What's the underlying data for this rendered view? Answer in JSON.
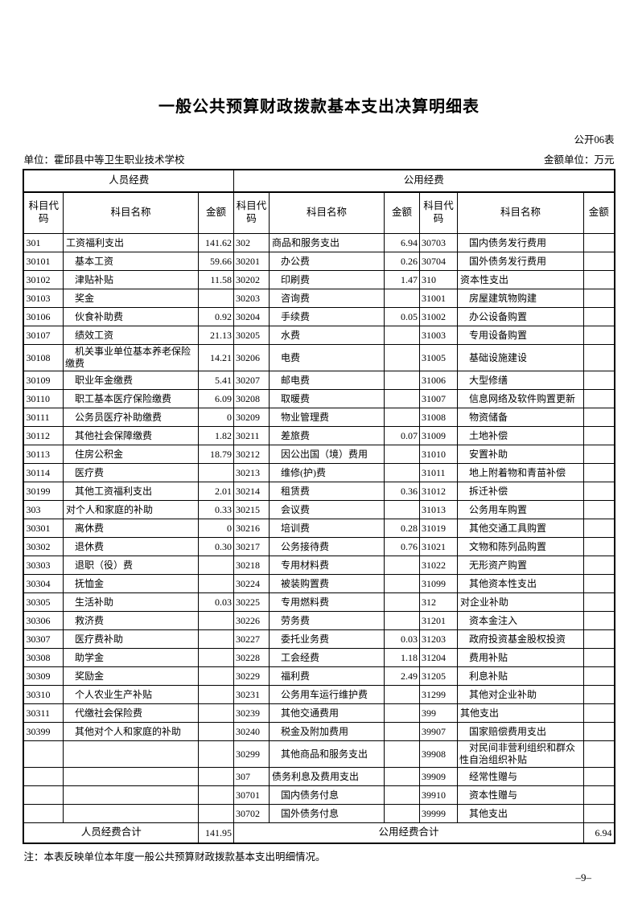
{
  "page": {
    "title": "一般公共预算财政拨款基本支出决算明细表",
    "form_code": "公开06表",
    "unit": "单位：霍邱县中等卫生职业技术学校",
    "amount_unit": "金额单位：万元",
    "note": "注：本表反映单位本年度一般公共预算财政拨款基本支出明细情况。",
    "page_number": "–9–"
  },
  "table": {
    "section_headers": {
      "personnel": "人员经费",
      "public": "公用经费"
    },
    "column_headers": {
      "code": "科目代码",
      "name": "科目名称",
      "amount": "金额"
    },
    "rows": [
      [
        "301",
        "工资福利支出",
        "141.62",
        "302",
        "商品和服务支出",
        "6.94",
        "30703",
        "国内债务发行费用",
        ""
      ],
      [
        "30101",
        "基本工资",
        "59.66",
        "30201",
        "办公费",
        "0.26",
        "30704",
        "国外债务发行费用",
        ""
      ],
      [
        "30102",
        "津贴补贴",
        "11.58",
        "30202",
        "印刷费",
        "1.47",
        "310",
        "资本性支出",
        ""
      ],
      [
        "30103",
        "奖金",
        "",
        "30203",
        "咨询费",
        "",
        "31001",
        "房屋建筑物购建",
        ""
      ],
      [
        "30106",
        "伙食补助费",
        "0.92",
        "30204",
        "手续费",
        "0.05",
        "31002",
        "办公设备购置",
        ""
      ],
      [
        "30107",
        "绩效工资",
        "21.13",
        "30205",
        "水费",
        "",
        "31003",
        "专用设备购置",
        ""
      ],
      [
        "30108",
        "机关事业单位基本养老保险缴费",
        "14.21",
        "30206",
        "电费",
        "",
        "31005",
        "基础设施建设",
        ""
      ],
      [
        "30109",
        "职业年金缴费",
        "5.41",
        "30207",
        "邮电费",
        "",
        "31006",
        "大型修缮",
        ""
      ],
      [
        "30110",
        "职工基本医疗保险缴费",
        "6.09",
        "30208",
        "取暖费",
        "",
        "31007",
        "信息网络及软件购置更新",
        ""
      ],
      [
        "30111",
        "公务员医疗补助缴费",
        "0",
        "30209",
        "物业管理费",
        "",
        "31008",
        "物资储备",
        ""
      ],
      [
        "30112",
        "其他社会保障缴费",
        "1.82",
        "30211",
        "差旅费",
        "0.07",
        "31009",
        "土地补偿",
        ""
      ],
      [
        "30113",
        "住房公积金",
        "18.79",
        "30212",
        "因公出国（境）费用",
        "",
        "31010",
        "安置补助",
        ""
      ],
      [
        "30114",
        "医疗费",
        "",
        "30213",
        "维修(护)费",
        "",
        "31011",
        "地上附着物和青苗补偿",
        ""
      ],
      [
        "30199",
        "其他工资福利支出",
        "2.01",
        "30214",
        "租赁费",
        "0.36",
        "31012",
        "拆迁补偿",
        ""
      ],
      [
        "303",
        "对个人和家庭的补助",
        "0.33",
        "30215",
        "会议费",
        "",
        "31013",
        "公务用车购置",
        ""
      ],
      [
        "30301",
        "离休费",
        "0",
        "30216",
        "培训费",
        "0.28",
        "31019",
        "其他交通工具购置",
        ""
      ],
      [
        "30302",
        "退休费",
        "0.30",
        "30217",
        "公务接待费",
        "0.76",
        "31021",
        "文物和陈列品购置",
        ""
      ],
      [
        "30303",
        "退职（役）费",
        "",
        "30218",
        "专用材料费",
        "",
        "31022",
        "无形资产购置",
        ""
      ],
      [
        "30304",
        "抚恤金",
        "",
        "30224",
        "被装购置费",
        "",
        "31099",
        "其他资本性支出",
        ""
      ],
      [
        "30305",
        "生活补助",
        "0.03",
        "30225",
        "专用燃料费",
        "",
        "312",
        "对企业补助",
        ""
      ],
      [
        "30306",
        "救济费",
        "",
        "30226",
        "劳务费",
        "",
        "31201",
        "资本金注入",
        ""
      ],
      [
        "30307",
        "医疗费补助",
        "",
        "30227",
        "委托业务费",
        "0.03",
        "31203",
        "政府投资基金股权投资",
        ""
      ],
      [
        "30308",
        "助学金",
        "",
        "30228",
        "工会经费",
        "1.18",
        "31204",
        "费用补贴",
        ""
      ],
      [
        "30309",
        "奖励金",
        "",
        "30229",
        "福利费",
        "2.49",
        "31205",
        "利息补贴",
        ""
      ],
      [
        "30310",
        "个人农业生产补贴",
        "",
        "30231",
        "公务用车运行维护费",
        "",
        "31299",
        "其他对企业补助",
        ""
      ],
      [
        "30311",
        "代缴社会保险费",
        "",
        "30239",
        "其他交通费用",
        "",
        "399",
        "其他支出",
        ""
      ],
      [
        "30399",
        "其他对个人和家庭的补助",
        "",
        "30240",
        "税金及附加费用",
        "",
        "39907",
        "国家赔偿费用支出",
        ""
      ],
      [
        "",
        "",
        "",
        "30299",
        "其他商品和服务支出",
        "",
        "39908",
        "对民间非营利组织和群众性自治组织补贴",
        ""
      ],
      [
        "",
        "",
        "",
        "307",
        "债务利息及费用支出",
        "",
        "39909",
        "经常性赠与",
        ""
      ],
      [
        "",
        "",
        "",
        "30701",
        "国内债务付息",
        "",
        "39910",
        "资本性赠与",
        ""
      ],
      [
        "",
        "",
        "",
        "30702",
        "国外债务付息",
        "",
        "39999",
        "其他支出",
        ""
      ]
    ],
    "footer": {
      "personnel_total_label": "人员经费合计",
      "personnel_total": "141.95",
      "public_total_label": "公用经费合计",
      "public_total": "6.94"
    }
  }
}
